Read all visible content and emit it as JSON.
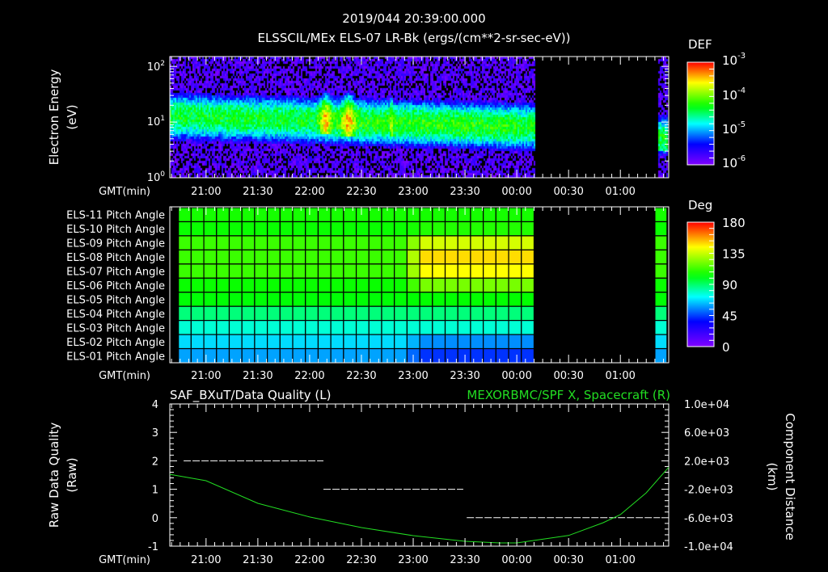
{
  "title": {
    "line1": "2019/044 20:39:00.000",
    "line2": "ELSSCIL/MEx ELS-07 LR-Bk  (ergs/(cm**2-sr-sec-eV))"
  },
  "time_axis": {
    "label": "GMT(min)",
    "start": "20:39",
    "end": "01:28",
    "span_minutes": 289,
    "ticks": [
      {
        "label": "21:00",
        "minute": 21
      },
      {
        "label": "21:30",
        "minute": 51
      },
      {
        "label": "22:00",
        "minute": 81
      },
      {
        "label": "22:30",
        "minute": 111
      },
      {
        "label": "23:00",
        "minute": 141
      },
      {
        "label": "23:30",
        "minute": 171
      },
      {
        "label": "00:00",
        "minute": 201
      },
      {
        "label": "00:30",
        "minute": 231
      },
      {
        "label": "01:00",
        "minute": 261
      }
    ]
  },
  "colors": {
    "background": "#000000",
    "axis": "#ffffff",
    "right_series": "#22dd22"
  },
  "chart_data": [
    {
      "type": "heatmap",
      "name": "electron-spectrogram",
      "ylabel_line1": "Electron Energy",
      "ylabel_line2": "(eV)",
      "yscale": "log",
      "ylim": [
        1,
        150
      ],
      "yticks": [
        {
          "base": "10",
          "exp": "2",
          "value": 100
        },
        {
          "base": "10",
          "exp": "1",
          "value": 10
        },
        {
          "base": "10",
          "exp": "0",
          "value": 1
        }
      ],
      "colorbar": {
        "title": "DEF",
        "log_range": [
          -6,
          -3
        ],
        "labels": [
          {
            "base": "10",
            "exp": "-3"
          },
          {
            "base": "10",
            "exp": "-4"
          },
          {
            "base": "10",
            "exp": "-5"
          },
          {
            "base": "10",
            "exp": "-6"
          }
        ]
      },
      "data_coverage_minutes": [
        [
          0,
          211
        ],
        [
          282,
          288
        ]
      ],
      "model": {
        "band_center_logE_start": 1.1,
        "band_center_logE_slope_per_min": -0.0009,
        "band_peak_logDEF": -4.35,
        "bursts": [
          {
            "minute": 90,
            "width": 3,
            "amp": 0.8
          },
          {
            "minute": 103,
            "width": 3.5,
            "amp": 0.85
          },
          {
            "minute": 128,
            "width": 0.8,
            "amp": 0.5
          }
        ]
      }
    },
    {
      "type": "heatmap",
      "name": "pitch-angle",
      "colorbar": {
        "title": "Deg",
        "range": [
          0,
          180
        ],
        "labels": [
          "180",
          "135",
          "90",
          "45",
          "0"
        ]
      },
      "time_range_minutes": [
        5,
        211
      ],
      "columns": 28,
      "transition_minute": 143,
      "strip_minutes": [
        281,
        288
      ],
      "rows": [
        {
          "label": "ELS-11 Pitch Angle",
          "early": 106,
          "late": 106
        },
        {
          "label": "ELS-10 Pitch Angle",
          "early": 104,
          "late": 108
        },
        {
          "label": "ELS-09 Pitch Angle",
          "early": 112,
          "late": 137
        },
        {
          "label": "ELS-08 Pitch Angle",
          "early": 112,
          "late": 149
        },
        {
          "label": "ELS-07 Pitch Angle",
          "early": 112,
          "late": 144
        },
        {
          "label": "ELS-06 Pitch Angle",
          "early": 104,
          "late": 122
        },
        {
          "label": "ELS-05 Pitch Angle",
          "early": 102,
          "late": 103
        },
        {
          "label": "ELS-04 Pitch Angle",
          "early": 88,
          "late": 88
        },
        {
          "label": "ELS-03 Pitch Angle",
          "early": 77,
          "late": 77
        },
        {
          "label": "ELS-02 Pitch Angle",
          "early": 67,
          "late": 56
        },
        {
          "label": "ELS-01 Pitch Angle",
          "early": 59,
          "late": 43
        }
      ]
    },
    {
      "type": "line",
      "name": "quality-and-distance",
      "left_title": "SAF_BXuT/Data Quality (L)",
      "right_title": "MEXORBMC/SPF X, Spacecraft (R)",
      "ylabel_left_line1": "Raw Data Quality",
      "ylabel_left_line2": "(Raw)",
      "ylabel_right_line1": "Component Distance",
      "ylabel_right_line2": "(km)",
      "ylim_left": [
        -1,
        4
      ],
      "yticks_left": [
        "4",
        "3",
        "2",
        "1",
        "0",
        "-1"
      ],
      "ylim_right": [
        -10000,
        10000
      ],
      "yticks_right": [
        "1.0e+04",
        "6.0e+03",
        "2.0e+03",
        "-2.0e+03",
        "-6.0e+03",
        "-1.0e+04"
      ],
      "quality_segments": [
        {
          "value": 2,
          "from_minute": 8,
          "to_minute": 89
        },
        {
          "value": 1,
          "from_minute": 89,
          "to_minute": 170
        },
        {
          "value": 0,
          "from_minute": 172,
          "to_minute": 284
        }
      ],
      "distance_series": {
        "minutes": [
          0,
          21,
          51,
          81,
          111,
          141,
          171,
          191,
          201,
          231,
          251,
          261,
          276,
          289
        ],
        "km": [
          100,
          -800,
          -3980,
          -5900,
          -7390,
          -8520,
          -9320,
          -9550,
          -9550,
          -8500,
          -6700,
          -5570,
          -2500,
          1100
        ]
      }
    }
  ]
}
